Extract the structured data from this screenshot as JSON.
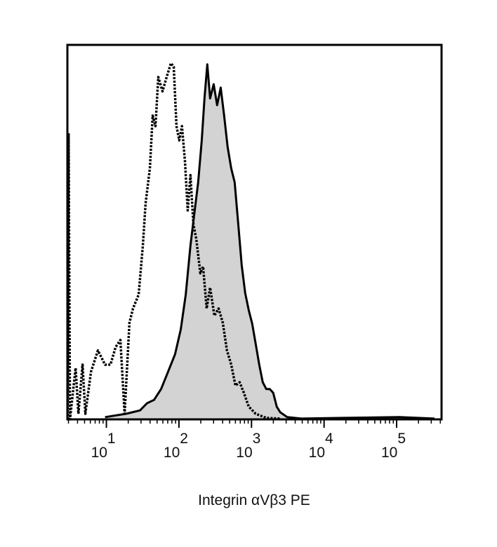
{
  "chart_data": {
    "type": "histogram_overlay",
    "x_label": "Integrin αVβ3 PE",
    "xscale": "log",
    "xlim": [
      2.9,
      416000
    ],
    "ylim": [
      0,
      100
    ],
    "xticks": [
      {
        "value": 10,
        "label": "10",
        "exponent": "1"
      },
      {
        "value": 100,
        "label": "10",
        "exponent": "2"
      },
      {
        "value": 1000,
        "label": "10",
        "exponent": "3"
      },
      {
        "value": 10000,
        "label": "10",
        "exponent": "4"
      },
      {
        "value": 100000,
        "label": "10",
        "exponent": "5"
      }
    ],
    "xminorticks": [
      3,
      4,
      5,
      6,
      7,
      8,
      9,
      20,
      30,
      40,
      50,
      60,
      70,
      80,
      90,
      200,
      300,
      400,
      500,
      600,
      700,
      800,
      900,
      2000,
      3000,
      4000,
      5000,
      6000,
      7000,
      8000,
      9000,
      20000,
      30000,
      40000,
      50000,
      60000,
      70000,
      80000,
      90000,
      200000,
      300000,
      400000
    ],
    "series": [
      {
        "color": "#000000",
        "fill": "#d3d3d3",
        "line_style": "solid",
        "x": [
          9.6,
          18.7,
          29.1,
          36.3,
          45.4,
          56.7,
          70.8,
          88.5,
          106,
          124,
          144,
          165,
          184,
          206,
          225,
          246,
          269,
          301,
          336,
          376,
          420,
          469,
          525,
          586,
          655,
          732,
          818,
          915,
          1023,
          1142,
          1277,
          1428,
          1596,
          1783,
          1993,
          2228,
          2490,
          3112,
          4857,
          18450,
          109000,
          333000
        ],
        "values": [
          0.6,
          1.5,
          2.4,
          4.3,
          5.2,
          8.1,
          12.7,
          17.4,
          24.0,
          33.3,
          46.4,
          55.8,
          63.3,
          74.5,
          85.7,
          94.8,
          85.7,
          89.5,
          83.9,
          88.6,
          81.1,
          72.7,
          67.0,
          63.3,
          52.4,
          41.2,
          33.7,
          29.2,
          25.5,
          20.2,
          14.6,
          9.9,
          8.1,
          8.1,
          7.1,
          3.4,
          1.9,
          0.6,
          0.2,
          0.4,
          0.6,
          0.2
        ]
      },
      {
        "color": "#000000",
        "line_style": "dotted",
        "x": [
          2.94,
          3.01,
          3.15,
          3.76,
          4.11,
          4.69,
          5.13,
          6.13,
          7.65,
          9.57,
          11.4,
          13.4,
          15.6,
          17.8,
          20.8,
          23.3,
          27.8,
          31.8,
          34.7,
          39.7,
          43.4,
          47.5,
          51.9,
          59.3,
          67.7,
          77.4,
          84.7,
          92.5,
          101,
          110,
          121,
          132,
          144,
          158,
          173,
          197,
          215,
          241,
          269,
          308,
          352,
          402,
          459,
          525,
          600,
          686,
          784,
          915,
          1142,
          1596,
          2490
        ],
        "values": [
          0,
          76.4,
          0,
          13.7,
          1.5,
          14.6,
          1.5,
          12.7,
          18.4,
          14.6,
          14.6,
          19.3,
          21.2,
          1.5,
          25.8,
          29.6,
          33.3,
          46.4,
          57.7,
          67.0,
          81.1,
          78.3,
          91.4,
          87.6,
          91.4,
          95.1,
          94.2,
          78.3,
          74.5,
          78.3,
          68.9,
          55.8,
          65.2,
          52.1,
          48.3,
          39.0,
          40.8,
          29.6,
          35.2,
          27.7,
          29.6,
          25.8,
          18.4,
          14.6,
          9.0,
          9.9,
          7.1,
          3.4,
          1.5,
          0.4,
          0.2
        ]
      }
    ]
  }
}
